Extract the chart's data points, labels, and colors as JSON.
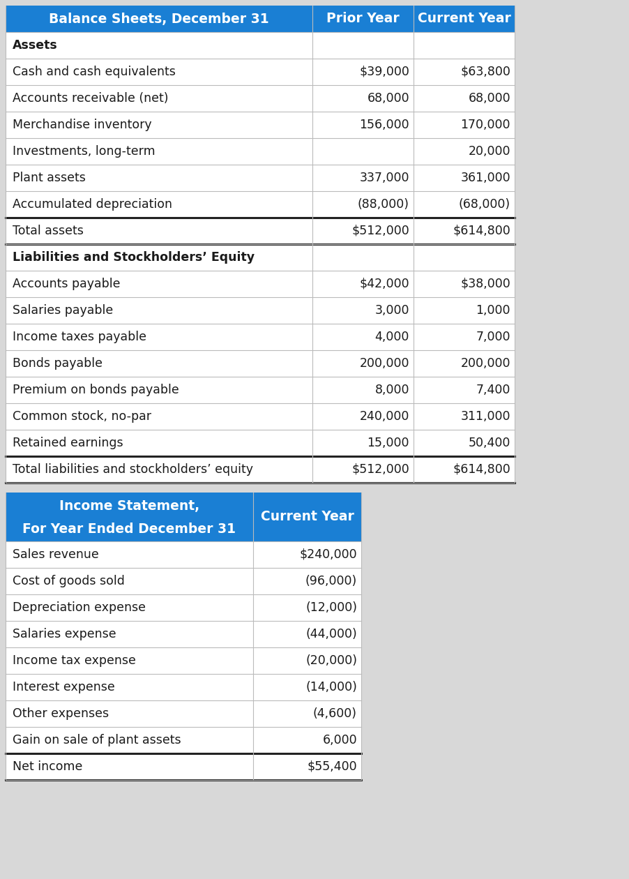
{
  "header_bg": "#1a7fd4",
  "header_text_color": "#ffffff",
  "border_color": "#bbbbbb",
  "bold_border_color": "#222222",
  "text_color": "#1a1a1a",
  "table1_header": [
    "Balance Sheets, December 31",
    "Prior Year",
    "Current Year"
  ],
  "table1_rows": [
    {
      "label": "Assets",
      "prior": "",
      "current": "",
      "bold_label": true,
      "bold_border_top": false,
      "bold_border_bottom": false
    },
    {
      "label": "Cash and cash equivalents",
      "prior": "$39,000",
      "current": "$63,800",
      "bold_label": false,
      "bold_border_top": false,
      "bold_border_bottom": false
    },
    {
      "label": "Accounts receivable (net)",
      "prior": "68,000",
      "current": "68,000",
      "bold_label": false,
      "bold_border_top": false,
      "bold_border_bottom": false
    },
    {
      "label": "Merchandise inventory",
      "prior": "156,000",
      "current": "170,000",
      "bold_label": false,
      "bold_border_top": false,
      "bold_border_bottom": false
    },
    {
      "label": "Investments, long-term",
      "prior": "",
      "current": "20,000",
      "bold_label": false,
      "bold_border_top": false,
      "bold_border_bottom": false
    },
    {
      "label": "Plant assets",
      "prior": "337,000",
      "current": "361,000",
      "bold_label": false,
      "bold_border_top": false,
      "bold_border_bottom": false
    },
    {
      "label": "Accumulated depreciation",
      "prior": "(88,000)",
      "current": "(68,000)",
      "bold_label": false,
      "bold_border_top": false,
      "bold_border_bottom": false
    },
    {
      "label": "Total assets",
      "prior": "$512,000",
      "current": "$614,800",
      "bold_label": false,
      "bold_border_top": true,
      "bold_border_bottom": true
    },
    {
      "label": "Liabilities and Stockholders’ Equity",
      "prior": "",
      "current": "",
      "bold_label": true,
      "bold_border_top": false,
      "bold_border_bottom": false
    },
    {
      "label": "Accounts payable",
      "prior": "$42,000",
      "current": "$38,000",
      "bold_label": false,
      "bold_border_top": false,
      "bold_border_bottom": false
    },
    {
      "label": "Salaries payable",
      "prior": "3,000",
      "current": "1,000",
      "bold_label": false,
      "bold_border_top": false,
      "bold_border_bottom": false
    },
    {
      "label": "Income taxes payable",
      "prior": "4,000",
      "current": "7,000",
      "bold_label": false,
      "bold_border_top": false,
      "bold_border_bottom": false
    },
    {
      "label": "Bonds payable",
      "prior": "200,000",
      "current": "200,000",
      "bold_label": false,
      "bold_border_top": false,
      "bold_border_bottom": false
    },
    {
      "label": "Premium on bonds payable",
      "prior": "8,000",
      "current": "7,400",
      "bold_label": false,
      "bold_border_top": false,
      "bold_border_bottom": false
    },
    {
      "label": "Common stock, no-par",
      "prior": "240,000",
      "current": "311,000",
      "bold_label": false,
      "bold_border_top": false,
      "bold_border_bottom": false
    },
    {
      "label": "Retained earnings",
      "prior": "15,000",
      "current": "50,400",
      "bold_label": false,
      "bold_border_top": false,
      "bold_border_bottom": false
    },
    {
      "label": "Total liabilities and stockholders’ equity",
      "prior": "$512,000",
      "current": "$614,800",
      "bold_label": false,
      "bold_border_top": true,
      "bold_border_bottom": true
    }
  ],
  "table2_header_line1": "Income Statement,",
  "table2_header_line2": "For Year Ended December 31",
  "table2_header_col2": "Current Year",
  "table2_rows": [
    {
      "label": "Sales revenue",
      "current": "$240,000",
      "bold_border_top": false,
      "bold_border_bottom": false
    },
    {
      "label": "Cost of goods sold",
      "current": "(96,000)",
      "bold_border_top": false,
      "bold_border_bottom": false
    },
    {
      "label": "Depreciation expense",
      "current": "(12,000)",
      "bold_border_top": false,
      "bold_border_bottom": false
    },
    {
      "label": "Salaries expense",
      "current": "(44,000)",
      "bold_border_top": false,
      "bold_border_bottom": false
    },
    {
      "label": "Income tax expense",
      "current": "(20,000)",
      "bold_border_top": false,
      "bold_border_bottom": false
    },
    {
      "label": "Interest expense",
      "current": "(14,000)",
      "bold_border_top": false,
      "bold_border_bottom": false
    },
    {
      "label": "Other expenses",
      "current": "(4,600)",
      "bold_border_top": false,
      "bold_border_bottom": false
    },
    {
      "label": "Gain on sale of plant assets",
      "current": "6,000",
      "bold_border_top": false,
      "bold_border_bottom": false
    },
    {
      "label": "Net income",
      "current": "$55,400",
      "bold_border_top": true,
      "bold_border_bottom": true
    }
  ],
  "fig_width": 9.02,
  "fig_height": 12.6,
  "bg_color": "#d8d8d8"
}
